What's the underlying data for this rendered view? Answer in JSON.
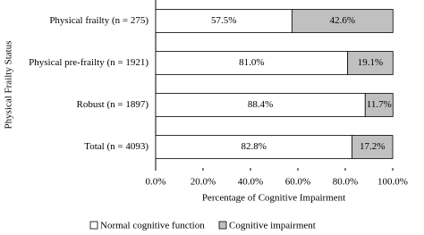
{
  "chart_data": {
    "type": "stacked_barh",
    "y_label": "Physical Frailty Status",
    "x_label": "Percentage of Cognitive Impairment",
    "categories": [
      "Physical frailty (n = 275)",
      "Physical pre-frailty (n = 1921)",
      "Robust (n = 1897)",
      "Total (n = 4093)"
    ],
    "series": [
      {
        "name": "Normal cognitive function",
        "color": "#ffffff",
        "values": [
          57.5,
          81.0,
          88.4,
          82.8
        ],
        "value_labels": [
          "57.5%",
          "81.0%",
          "88.4%",
          "82.8%"
        ]
      },
      {
        "name": "Cognitive impairment",
        "color": "#c0c0c0",
        "values": [
          42.6,
          19.1,
          11.7,
          17.2
        ],
        "value_labels": [
          "42.6%",
          "19.1%",
          "11.7%",
          "17.2%"
        ]
      }
    ],
    "xlim": [
      0,
      100
    ],
    "xticks": [
      {
        "value": 0,
        "label": "0.0%"
      },
      {
        "value": 20,
        "label": "20.0%"
      },
      {
        "value": 40,
        "label": "40.0%"
      },
      {
        "value": 60,
        "label": "60.0%"
      },
      {
        "value": 80,
        "label": "80.0%"
      },
      {
        "value": 100,
        "label": "100.0%"
      }
    ],
    "legend": "bottom"
  }
}
